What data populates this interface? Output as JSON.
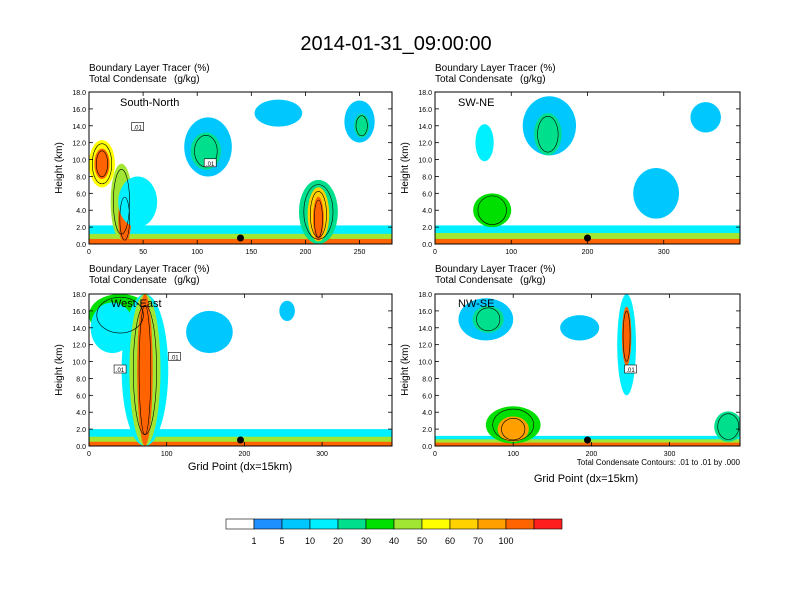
{
  "figure": {
    "title": "2014-01-31_09:00:00",
    "x_axis_title": "Grid Point (dx=15km)",
    "y_axis_title": "Height (km)",
    "contour_note": "Total Condensate Contours: .01 to .01 by .000",
    "field_label": "Boundary Layer Tracer",
    "field_unit": "(%)",
    "contour_label": "Total Condensate",
    "contour_unit": "(g/kg)"
  },
  "colors": {
    "levels": [
      "#ffffff",
      "#1e90ff",
      "#00c8ff",
      "#00f0ff",
      "#00e08c",
      "#00e000",
      "#a0e632",
      "#ffff00",
      "#ffd200",
      "#ffa000",
      "#ff6400",
      "#ff1e1e"
    ],
    "colorbar_labels": [
      "1",
      "5",
      "10",
      "20",
      "30",
      "40",
      "50",
      "60",
      "70",
      "100"
    ]
  },
  "chart_data": [
    {
      "type": "heatmap",
      "panel": "South-North",
      "xlim": [
        0,
        280
      ],
      "ylim": [
        0,
        18
      ],
      "x_ticks": [
        "0",
        "50",
        "100",
        "150",
        "200",
        "250"
      ],
      "y_ticks": [
        "0.0",
        "2.0",
        "4.0",
        "6.0",
        "8.0",
        "10.0",
        "12.0",
        "14.0",
        "16.0",
        "18.0"
      ],
      "marker_x": 140,
      "contour_tags": [
        {
          "text": ".01",
          "x": 45,
          "y": 13.8
        },
        {
          "text": ".01",
          "x": 112,
          "y": 9.5
        }
      ],
      "features": [
        {
          "kind": "surface",
          "x0": 0,
          "x1": 280,
          "top": 2.2,
          "level": 3
        },
        {
          "kind": "surface",
          "x0": 0,
          "x1": 280,
          "top": 1.2,
          "level": 6
        },
        {
          "kind": "surface",
          "x0": 0,
          "x1": 280,
          "top": 0.6,
          "level": 10
        },
        {
          "kind": "blob",
          "cx": 12,
          "cy": 9.5,
          "rx": 12,
          "ry": 2.8,
          "level": 7
        },
        {
          "kind": "blob",
          "cx": 12,
          "cy": 9.5,
          "rx": 7,
          "ry": 1.8,
          "level": 10
        },
        {
          "kind": "blob",
          "cx": 30,
          "cy": 5,
          "rx": 10,
          "ry": 4.5,
          "level": 6
        },
        {
          "kind": "blob",
          "cx": 33,
          "cy": 3,
          "rx": 6,
          "ry": 3,
          "level": 10
        },
        {
          "kind": "blob",
          "cx": 45,
          "cy": 5,
          "rx": 18,
          "ry": 3,
          "level": 3
        },
        {
          "kind": "blob",
          "cx": 110,
          "cy": 11.5,
          "rx": 22,
          "ry": 3.5,
          "level": 2
        },
        {
          "kind": "blob",
          "cx": 108,
          "cy": 11,
          "rx": 14,
          "ry": 2.2,
          "level": 4
        },
        {
          "kind": "blob",
          "cx": 175,
          "cy": 15.5,
          "rx": 22,
          "ry": 1.6,
          "level": 2
        },
        {
          "kind": "blob",
          "cx": 250,
          "cy": 14.5,
          "rx": 14,
          "ry": 2.5,
          "level": 2
        },
        {
          "kind": "blob",
          "cx": 252,
          "cy": 14,
          "rx": 7,
          "ry": 1.4,
          "level": 4
        },
        {
          "kind": "blob",
          "cx": 212,
          "cy": 3.8,
          "rx": 18,
          "ry": 3.8,
          "level": 4
        },
        {
          "kind": "blob",
          "cx": 212,
          "cy": 3.5,
          "rx": 10,
          "ry": 3.2,
          "level": 8
        },
        {
          "kind": "blob",
          "cx": 212,
          "cy": 3,
          "rx": 5,
          "ry": 2.6,
          "level": 10
        }
      ]
    },
    {
      "type": "heatmap",
      "panel": "SW-NE",
      "xlim": [
        0,
        400
      ],
      "ylim": [
        0,
        18
      ],
      "x_ticks": [
        "0",
        "100",
        "200",
        "300"
      ],
      "y_ticks": [
        "0.0",
        "2.0",
        "4.0",
        "6.0",
        "8.0",
        "10.0",
        "12.0",
        "14.0",
        "16.0",
        "18.0"
      ],
      "marker_x": 200,
      "contour_tags": [],
      "features": [
        {
          "kind": "surface",
          "x0": 0,
          "x1": 400,
          "top": 2.2,
          "level": 3
        },
        {
          "kind": "surface",
          "x0": 0,
          "x1": 400,
          "top": 1.3,
          "level": 6
        },
        {
          "kind": "surface",
          "x0": 0,
          "x1": 400,
          "top": 0.6,
          "level": 10
        },
        {
          "kind": "blob",
          "cx": 75,
          "cy": 4,
          "rx": 25,
          "ry": 2,
          "level": 5
        },
        {
          "kind": "blob",
          "cx": 150,
          "cy": 14,
          "rx": 35,
          "ry": 3.5,
          "level": 2
        },
        {
          "kind": "blob",
          "cx": 148,
          "cy": 13,
          "rx": 18,
          "ry": 2.5,
          "level": 4
        },
        {
          "kind": "blob",
          "cx": 355,
          "cy": 15,
          "rx": 20,
          "ry": 1.8,
          "level": 2
        },
        {
          "kind": "blob",
          "cx": 290,
          "cy": 6,
          "rx": 30,
          "ry": 3,
          "level": 2
        },
        {
          "kind": "blob",
          "cx": 65,
          "cy": 12,
          "rx": 12,
          "ry": 2.2,
          "level": 3
        }
      ]
    },
    {
      "type": "heatmap",
      "panel": "West-East",
      "xlim": [
        0,
        390
      ],
      "ylim": [
        0,
        18
      ],
      "x_ticks": [
        "0",
        "100",
        "200",
        "300"
      ],
      "y_ticks": [
        "0.0",
        "2.0",
        "4.0",
        "6.0",
        "8.0",
        "10.0",
        "12.0",
        "14.0",
        "16.0",
        "18.0"
      ],
      "marker_x": 195,
      "contour_tags": [
        {
          "text": ".01",
          "x": 40,
          "y": 9
        },
        {
          "text": ".01",
          "x": 110,
          "y": 10.5
        }
      ],
      "features": [
        {
          "kind": "surface",
          "x0": 0,
          "x1": 390,
          "top": 2.0,
          "level": 3
        },
        {
          "kind": "surface",
          "x0": 0,
          "x1": 390,
          "top": 1.1,
          "level": 6
        },
        {
          "kind": "surface",
          "x0": 0,
          "x1": 390,
          "top": 0.5,
          "level": 10
        },
        {
          "kind": "blob",
          "cx": 40,
          "cy": 15.5,
          "rx": 40,
          "ry": 2.5,
          "level": 5
        },
        {
          "kind": "blob",
          "cx": 30,
          "cy": 14,
          "rx": 28,
          "ry": 3,
          "level": 3
        },
        {
          "kind": "blob",
          "cx": 72,
          "cy": 9,
          "rx": 30,
          "ry": 9,
          "level": 3
        },
        {
          "kind": "blob",
          "cx": 72,
          "cy": 9,
          "rx": 20,
          "ry": 9,
          "level": 6
        },
        {
          "kind": "blob",
          "cx": 72,
          "cy": 9,
          "rx": 10,
          "ry": 9,
          "level": 10
        },
        {
          "kind": "blob",
          "cx": 155,
          "cy": 13.5,
          "rx": 30,
          "ry": 2.5,
          "level": 2
        },
        {
          "kind": "blob",
          "cx": 255,
          "cy": 16,
          "rx": 10,
          "ry": 1.2,
          "level": 2
        }
      ]
    },
    {
      "type": "heatmap",
      "panel": "NW-SE",
      "xlim": [
        0,
        390
      ],
      "ylim": [
        0,
        18
      ],
      "x_ticks": [
        "0",
        "100",
        "200",
        "300"
      ],
      "y_ticks": [
        "0.0",
        "2.0",
        "4.0",
        "6.0",
        "8.0",
        "10.0",
        "12.0",
        "14.0",
        "16.0",
        "18.0"
      ],
      "marker_x": 195,
      "contour_tags": [
        {
          "text": ".01",
          "x": 250,
          "y": 9
        }
      ],
      "features": [
        {
          "kind": "surface",
          "x0": 0,
          "x1": 390,
          "top": 1.2,
          "level": 3
        },
        {
          "kind": "surface",
          "x0": 0,
          "x1": 390,
          "top": 0.8,
          "level": 6
        },
        {
          "kind": "surface",
          "x0": 0,
          "x1": 390,
          "top": 0.4,
          "level": 10
        },
        {
          "kind": "blob",
          "cx": 65,
          "cy": 15,
          "rx": 35,
          "ry": 2.5,
          "level": 2
        },
        {
          "kind": "blob",
          "cx": 68,
          "cy": 15,
          "rx": 20,
          "ry": 1.6,
          "level": 4
        },
        {
          "kind": "blob",
          "cx": 245,
          "cy": 12,
          "rx": 12,
          "ry": 6,
          "level": 3
        },
        {
          "kind": "blob",
          "cx": 245,
          "cy": 13,
          "rx": 6,
          "ry": 3.5,
          "level": 10
        },
        {
          "kind": "blob",
          "cx": 100,
          "cy": 2.5,
          "rx": 35,
          "ry": 2.2,
          "level": 5
        },
        {
          "kind": "blob",
          "cx": 100,
          "cy": 2,
          "rx": 20,
          "ry": 1.5,
          "level": 9
        },
        {
          "kind": "blob",
          "cx": 375,
          "cy": 2.3,
          "rx": 18,
          "ry": 1.8,
          "level": 4
        },
        {
          "kind": "blob",
          "cx": 185,
          "cy": 14,
          "rx": 25,
          "ry": 1.5,
          "level": 2
        }
      ]
    }
  ]
}
